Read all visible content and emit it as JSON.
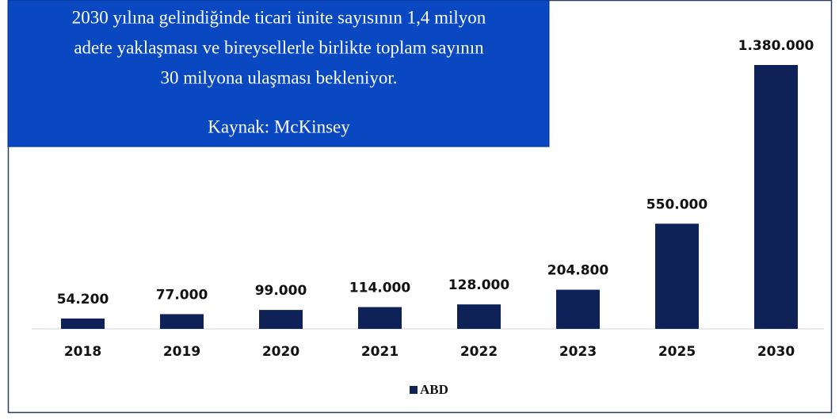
{
  "chart_data": {
    "type": "bar",
    "annotation": [
      "2030 yılına gelindiğinde ticari ünite sayısının 1,4 milyon",
      "adete yaklaşması ve bireysellerle birlikte toplam sayının",
      "30 milyona ulaşması bekleniyor."
    ],
    "source": "Kaynak: McKinsey",
    "categories": [
      "2018",
      "2019",
      "2020",
      "2021",
      "2022",
      "2023",
      "2025",
      "2030"
    ],
    "series": [
      {
        "name": "ABD",
        "color": "#0e2258",
        "values": [
          54200,
          77000,
          99000,
          114000,
          128000,
          204800,
          550000,
          1380000
        ],
        "value_labels": [
          "54.200",
          "77.000",
          "99.000",
          "114.000",
          "128.000",
          "204.800",
          "550.000",
          "1.380.000"
        ]
      }
    ],
    "legend": "bottom"
  }
}
